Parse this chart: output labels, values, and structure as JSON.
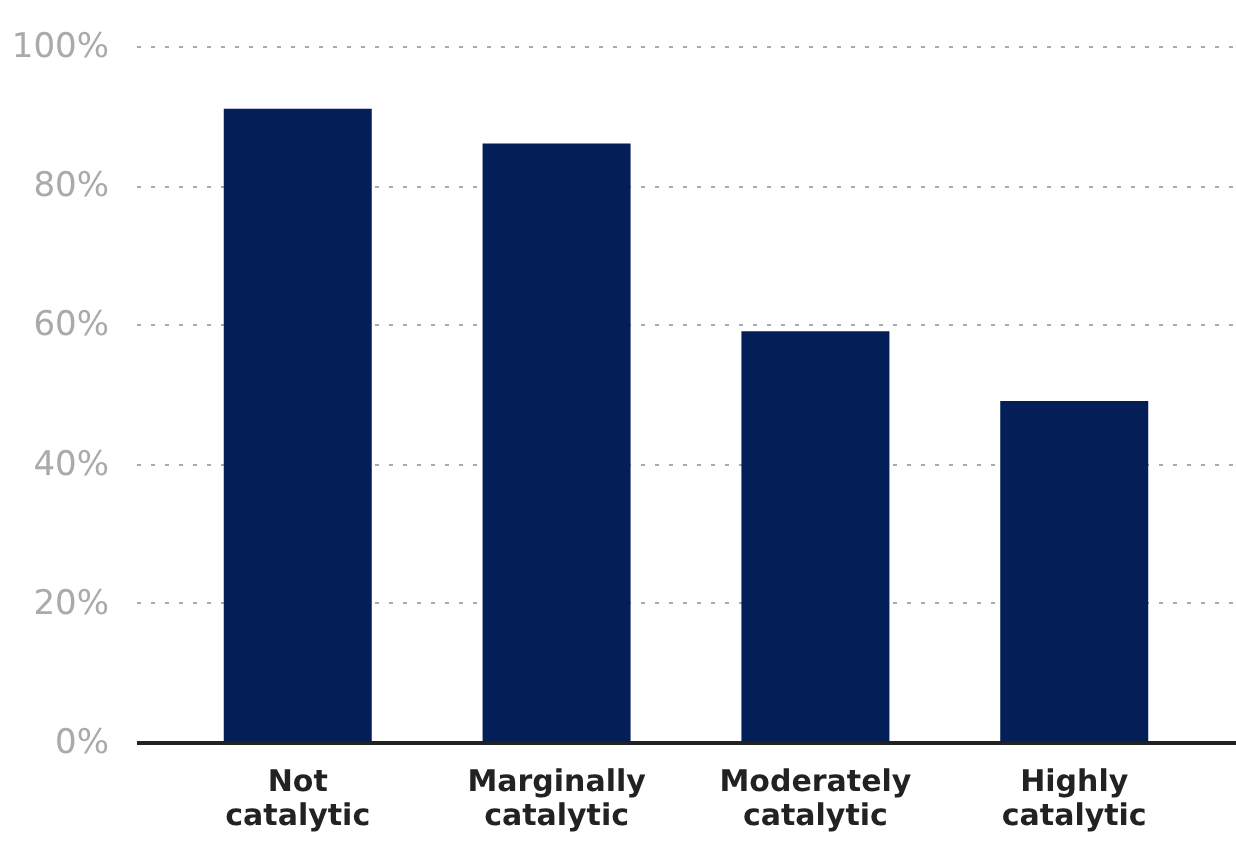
{
  "chart_data": {
    "type": "bar",
    "categories": [
      "Not catalytic",
      "Marginally catalytic",
      "Moderately catalytic",
      "Highly catalytic"
    ],
    "values": [
      91,
      86,
      59,
      49
    ],
    "color": "#041e57",
    "ylim": [
      0,
      100
    ],
    "yticks": [
      {
        "value": 0,
        "label": "0%"
      },
      {
        "value": 20,
        "label": "20%"
      },
      {
        "value": 40,
        "label": "40%"
      },
      {
        "value": 60,
        "label": "60%"
      },
      {
        "value": 80,
        "label": "80%"
      },
      {
        "value": 100,
        "label": "100%"
      }
    ],
    "grid": "y"
  }
}
